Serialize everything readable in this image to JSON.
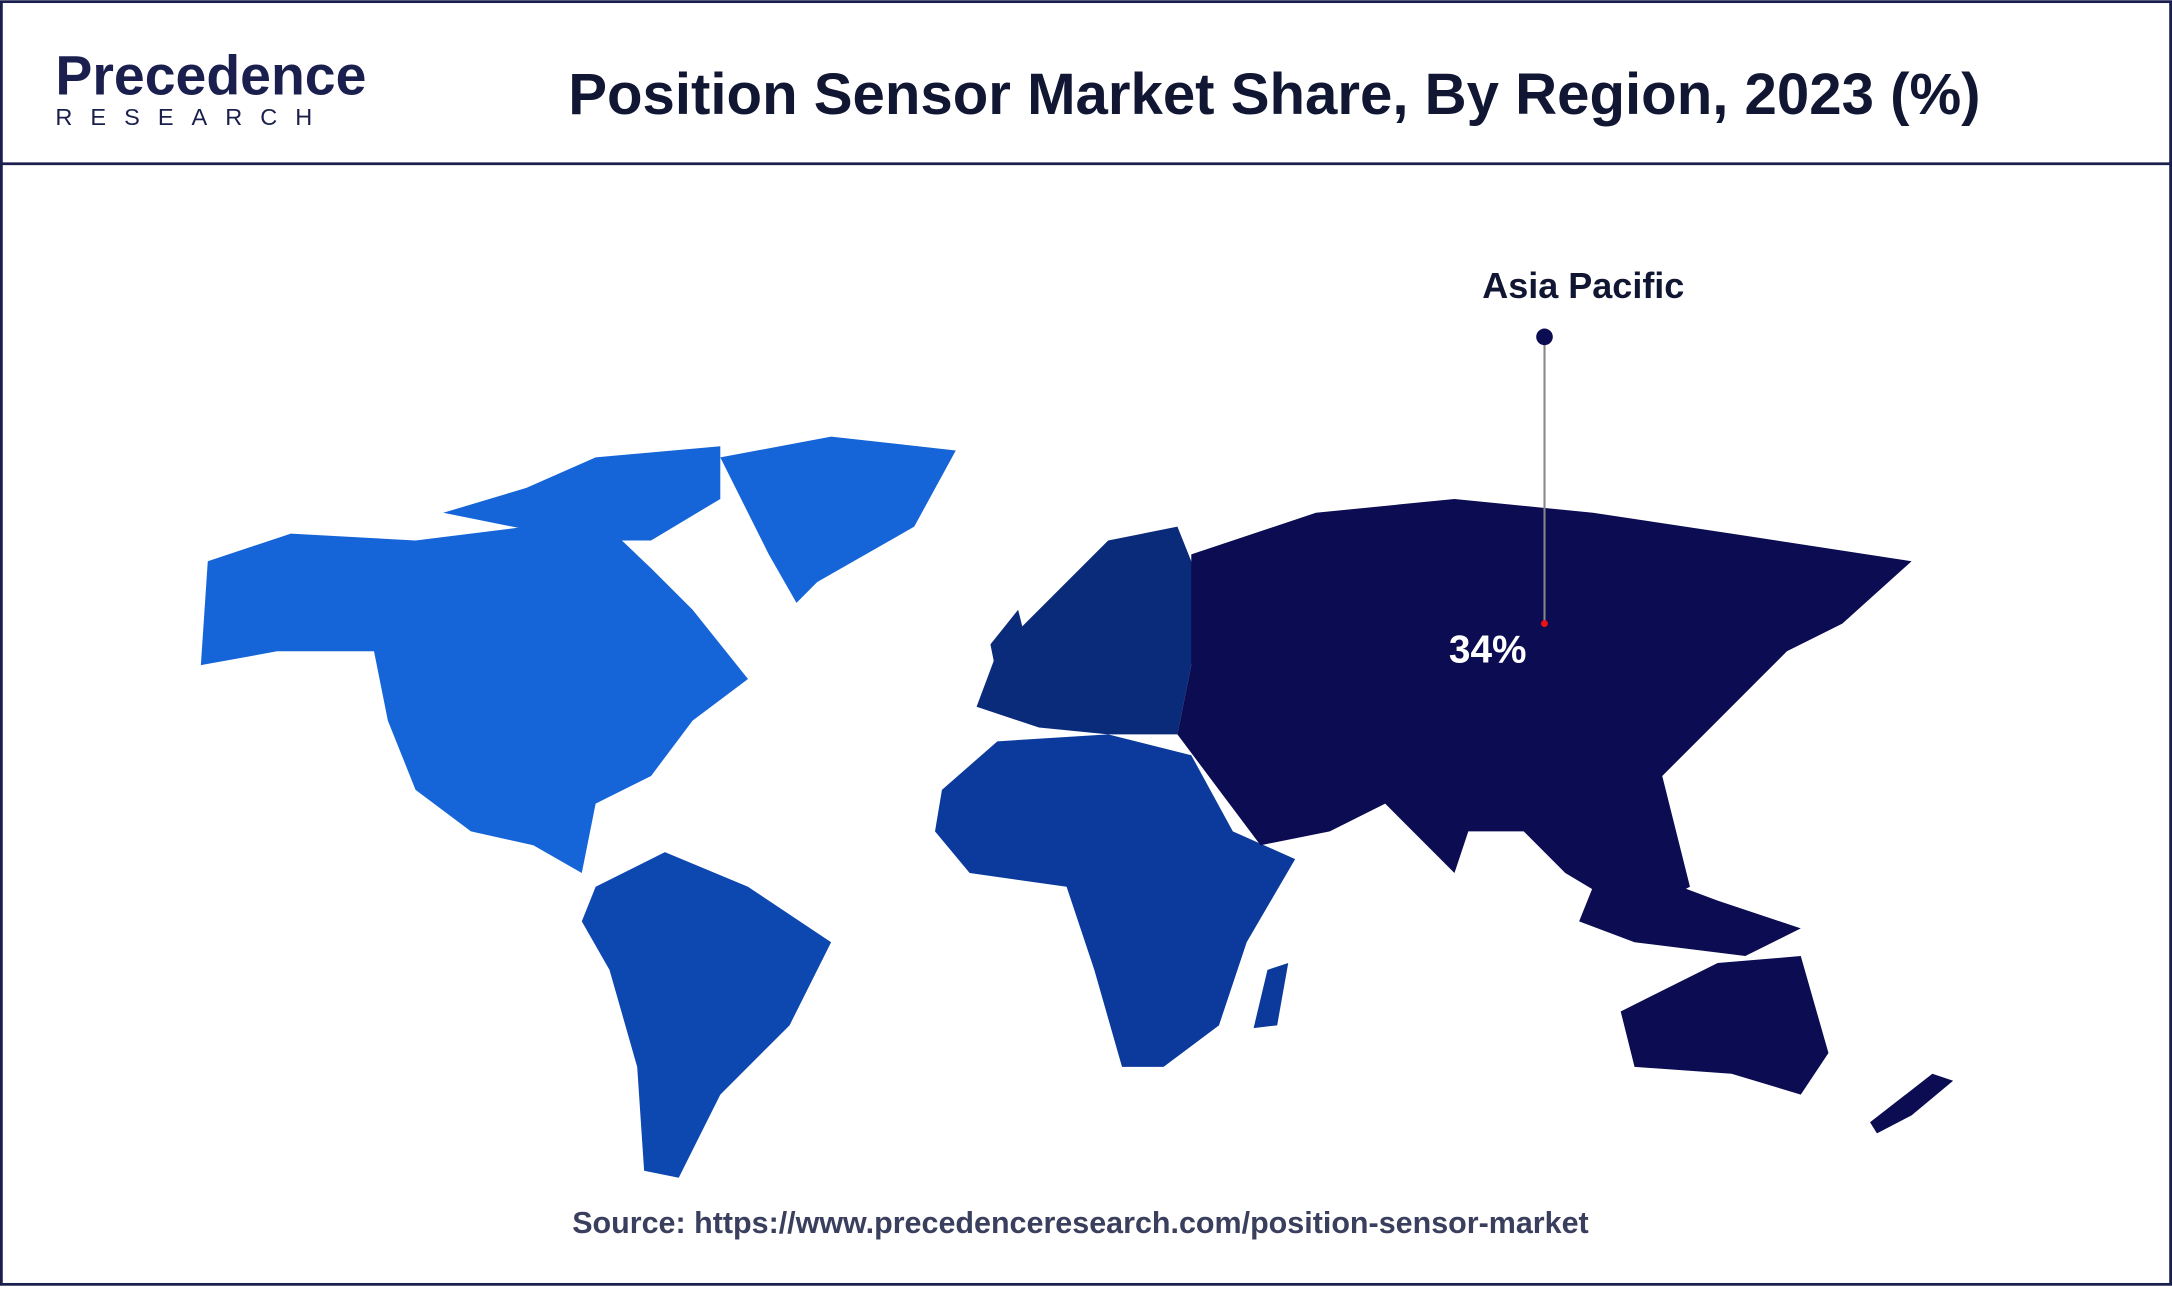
{
  "header": {
    "logo_top": "Precedence",
    "logo_bottom": "RESEARCH",
    "title": "Position Sensor Market Share, By Region, 2023 (%)"
  },
  "callout": {
    "region": "Asia Pacific",
    "value": "34%"
  },
  "source": "Source: https://www.precedenceresearch.com/position-sensor-market"
}
